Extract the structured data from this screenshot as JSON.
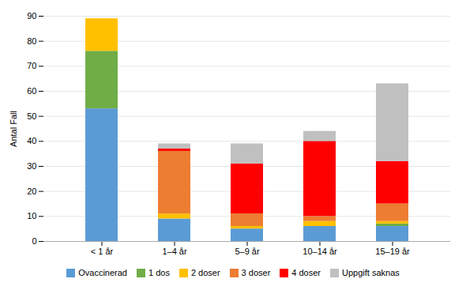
{
  "chart_data": {
    "type": "bar",
    "stacked": true,
    "grid": true,
    "legend": "bottom",
    "ylabel": "Antal Fall",
    "categories": [
      "< 1 år",
      "1–4 år",
      "5–9 år",
      "10–14 år",
      "15–19 år"
    ],
    "series": [
      {
        "name": "Ovaccinerad",
        "color": "#5B9BD5",
        "values": [
          53,
          9,
          5,
          6,
          6
        ]
      },
      {
        "name": "1 dos",
        "color": "#70AD47",
        "values": [
          23,
          0,
          0,
          0,
          1
        ]
      },
      {
        "name": "2 doser",
        "color": "#FFC000",
        "values": [
          13,
          2,
          1,
          2,
          1
        ]
      },
      {
        "name": "3 doser",
        "color": "#ED7D31",
        "values": [
          0,
          25,
          5,
          2,
          7
        ]
      },
      {
        "name": "4 doser",
        "color": "#FF0000",
        "values": [
          0,
          1,
          20,
          30,
          17
        ]
      },
      {
        "name": "Uppgift saknas",
        "color": "#C0C0C0",
        "values": [
          0,
          2,
          8,
          4,
          31
        ]
      }
    ],
    "ylim": [
      0,
      90
    ],
    "yticks": [
      0,
      10,
      20,
      30,
      40,
      50,
      60,
      70,
      80,
      90
    ]
  }
}
